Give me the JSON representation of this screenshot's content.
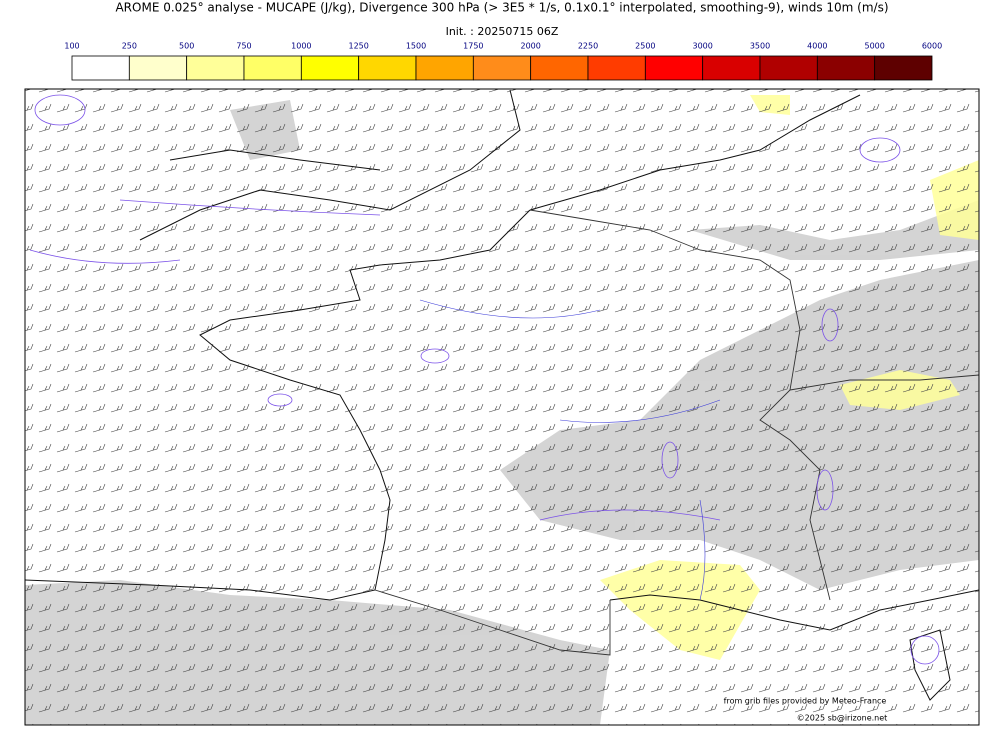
{
  "header": {
    "title": "AROME 0.025° analyse - MUCAPE (J/kg), Divergence 300 hPa (> 3E5 * 1/s, 0.1x0.1° interpolated, smoothing-9), winds 10m (m/s)",
    "init": "Init. : 20250715 06Z"
  },
  "colorbar": {
    "ticks": [
      100,
      250,
      500,
      750,
      1000,
      1250,
      1500,
      1750,
      2000,
      2250,
      2500,
      3000,
      3500,
      4000,
      5000,
      6000
    ],
    "colors": [
      "#ffffff",
      "#ffffcc",
      "#ffff99",
      "#ffff66",
      "#ffff00",
      "#ffd700",
      "#ffa500",
      "#ff8c1a",
      "#ff6600",
      "#ff3c00",
      "#ff0000",
      "#d90000",
      "#b00000",
      "#8b0000",
      "#5e0000"
    ]
  },
  "credits": {
    "source": "from grib files provided by Meteo-France",
    "copyright": "©2025 sb@irizone.net"
  }
}
